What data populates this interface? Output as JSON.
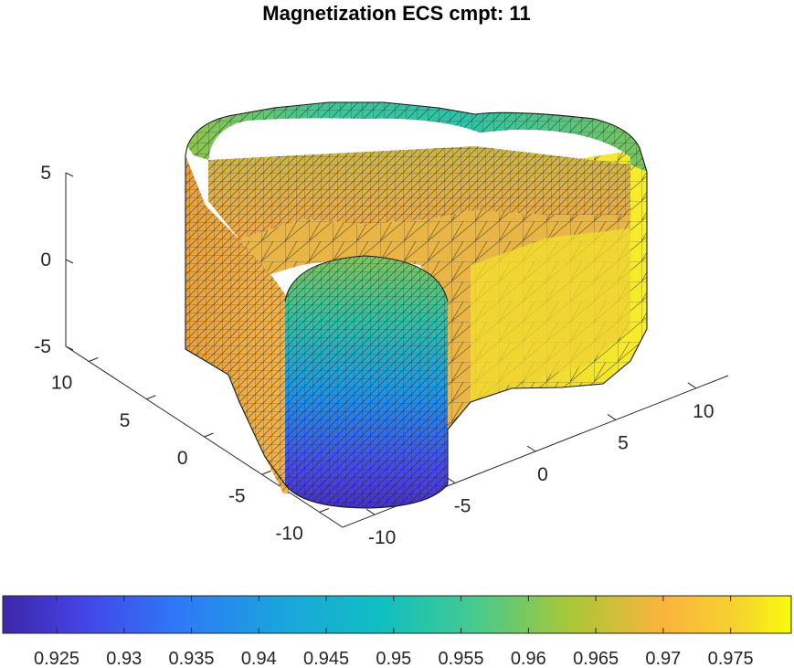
{
  "chart_data": {
    "type": "surface",
    "title": "Magnetization ECS cmpt: 11",
    "xlabel": "",
    "ylabel": "",
    "zlabel": "",
    "x_ticks": [
      "-10",
      "-5",
      "0",
      "5",
      "10"
    ],
    "y_ticks": [
      "-10",
      "-5",
      "0",
      "5",
      "10"
    ],
    "z_ticks": [
      "-5",
      "0",
      "5"
    ],
    "xlim": [
      -12,
      12
    ],
    "ylim": [
      -12,
      12
    ],
    "zlim": [
      -5,
      5
    ],
    "colormap": "parula",
    "colorbar": {
      "location": "south",
      "range": [
        0.921,
        0.9795
      ],
      "tick_labels": [
        "0.925",
        "0.93",
        "0.935",
        "0.94",
        "0.945",
        "0.95",
        "0.955",
        "0.96",
        "0.965",
        "0.97",
        "0.975"
      ],
      "tick_values": [
        0.925,
        0.93,
        0.935,
        0.94,
        0.945,
        0.95,
        0.955,
        0.96,
        0.965,
        0.97,
        0.975
      ]
    },
    "colors": {
      "low": "#3e26a8",
      "mid_low": "#2a8de0",
      "mid": "#17bbb5",
      "mid_high": "#8ec53a",
      "high_orange": "#fbb43c",
      "high": "#f9fb0e"
    }
  }
}
